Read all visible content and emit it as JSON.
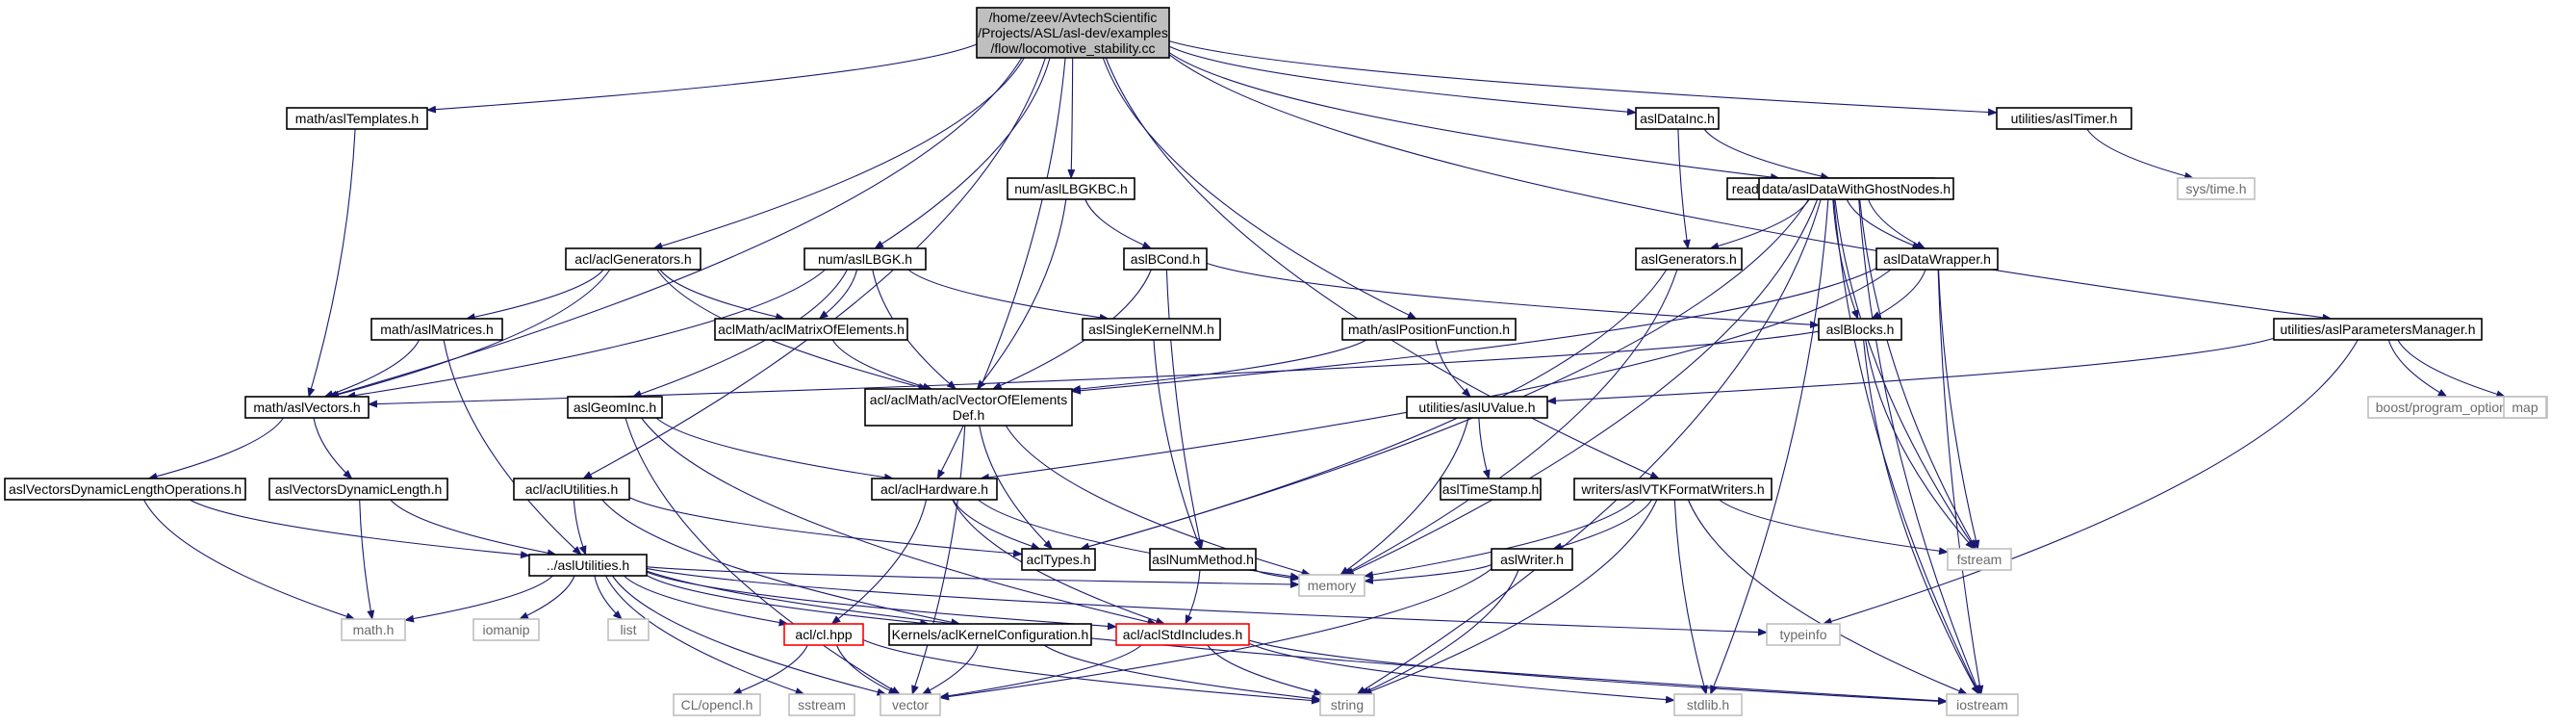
{
  "colors": {
    "edge": "#191970",
    "box_border": "#000000",
    "root_fill": "#bfbfbf",
    "missing_border": "#ff0000",
    "system_border": "#bfbfbf"
  },
  "nodes": {
    "root": {
      "kind": "root",
      "lines": [
        "/home/zeev/AvtechScientific",
        "/Projects/ASL/asl-dev/examples",
        "/flow/locomotive_stability.cc"
      ]
    },
    "math_aslTemplates": {
      "kind": "box",
      "lines": [
        "math/aslTemplates.h"
      ]
    },
    "utilities_aslTimer": {
      "kind": "box",
      "lines": [
        "utilities/aslTimer.h"
      ]
    },
    "aslDataInc": {
      "kind": "box",
      "lines": [
        "aslDataInc.h"
      ]
    },
    "sys_time": {
      "kind": "system",
      "lines": [
        "sys/time.h"
      ]
    },
    "num_aslLBGKBC": {
      "kind": "box",
      "lines": [
        "num/aslLBGKBC.h"
      ]
    },
    "readers_aslVTKFormatReaders": {
      "kind": "box",
      "lines": [
        "readers/aslVTKFormatReaders.h"
      ]
    },
    "data_aslDataWithGhostNodes": {
      "kind": "box",
      "lines": [
        "data/aslDataWithGhostNodes.h"
      ]
    },
    "acl_aclGenerators": {
      "kind": "box",
      "lines": [
        "acl/aclGenerators.h"
      ]
    },
    "num_aslLBGK": {
      "kind": "box",
      "lines": [
        "num/aslLBGK.h"
      ]
    },
    "aslBCond": {
      "kind": "box",
      "lines": [
        "aslBCond.h"
      ]
    },
    "aslGenerators": {
      "kind": "box",
      "lines": [
        "aslGenerators.h"
      ]
    },
    "aslDataWrapper": {
      "kind": "box",
      "lines": [
        "aslDataWrapper.h"
      ]
    },
    "math_aslMatrices": {
      "kind": "box",
      "lines": [
        "math/aslMatrices.h"
      ]
    },
    "aclMath_aclMatrixOfElements": {
      "kind": "box",
      "lines": [
        "aclMath/aclMatrixOfElements.h"
      ]
    },
    "aslSingleKernelNM": {
      "kind": "box",
      "lines": [
        "aslSingleKernelNM.h"
      ]
    },
    "math_aslPositionFunction": {
      "kind": "box",
      "lines": [
        "math/aslPositionFunction.h"
      ]
    },
    "aslBlocks": {
      "kind": "box",
      "lines": [
        "aslBlocks.h"
      ]
    },
    "utilities_aslParametersManager": {
      "kind": "box",
      "lines": [
        "utilities/aslParametersManager.h"
      ]
    },
    "math_aslVectors": {
      "kind": "box",
      "lines": [
        "math/aslVectors.h"
      ]
    },
    "aclVectorOfElementsDef": {
      "kind": "box",
      "lines": [
        "acl/aclMath/aclVectorOfElements",
        "Def.h"
      ]
    },
    "utilities_aslUValue": {
      "kind": "box",
      "lines": [
        "utilities/aslUValue.h"
      ]
    },
    "boost_program_options": {
      "kind": "system",
      "lines": [
        "boost/program_options.hpp"
      ]
    },
    "map": {
      "kind": "system",
      "lines": [
        "map"
      ]
    },
    "aslGeomInc": {
      "kind": "box",
      "lines": [
        "aslGeomInc.h"
      ]
    },
    "aslVectorsDynamicLengthOperations": {
      "kind": "box",
      "lines": [
        "aslVectorsDynamicLengthOperations.h"
      ]
    },
    "aslVectorsDynamicLength": {
      "kind": "box",
      "lines": [
        "aslVectorsDynamicLength.h"
      ]
    },
    "acl_aclUtilities": {
      "kind": "box",
      "lines": [
        "acl/aclUtilities.h"
      ]
    },
    "acl_aclHardware": {
      "kind": "box",
      "lines": [
        "acl/aclHardware.h"
      ]
    },
    "aslTimeStamp": {
      "kind": "box",
      "lines": [
        "aslTimeStamp.h"
      ]
    },
    "writers_aslVTKFormatWriters": {
      "kind": "box",
      "lines": [
        "writers/aslVTKFormatWriters.h"
      ]
    },
    "aclTypes": {
      "kind": "box",
      "lines": [
        "aclTypes.h"
      ]
    },
    "aslNumMethod": {
      "kind": "box",
      "lines": [
        "aslNumMethod.h"
      ]
    },
    "fstream": {
      "kind": "system",
      "lines": [
        "fstream"
      ]
    },
    "aslUtilities": {
      "kind": "box",
      "lines": [
        "../aslUtilities.h"
      ]
    },
    "aslWriter": {
      "kind": "box",
      "lines": [
        "aslWriter.h"
      ]
    },
    "math_h": {
      "kind": "system",
      "lines": [
        "math.h"
      ]
    },
    "iomanip": {
      "kind": "system",
      "lines": [
        "iomanip"
      ]
    },
    "list": {
      "kind": "system",
      "lines": [
        "list"
      ]
    },
    "acl_cl_hpp": {
      "kind": "missing",
      "lines": [
        "acl/cl.hpp"
      ]
    },
    "Kernels_aclKernelConfiguration": {
      "kind": "box",
      "lines": [
        "Kernels/aclKernelConfiguration.h"
      ]
    },
    "acl_aclStdIncludes": {
      "kind": "missing",
      "lines": [
        "acl/aclStdIncludes.h"
      ]
    },
    "memory": {
      "kind": "system",
      "lines": [
        "memory"
      ]
    },
    "typeinfo": {
      "kind": "system",
      "lines": [
        "typeinfo"
      ]
    },
    "CL_opencl": {
      "kind": "system",
      "lines": [
        "CL/opencl.h"
      ]
    },
    "sstream": {
      "kind": "system",
      "lines": [
        "sstream"
      ]
    },
    "vector": {
      "kind": "system",
      "lines": [
        "vector"
      ]
    },
    "string": {
      "kind": "system",
      "lines": [
        "string"
      ]
    },
    "stdlib_h": {
      "kind": "system",
      "lines": [
        "stdlib.h"
      ]
    },
    "iostream": {
      "kind": "system",
      "lines": [
        "iostream"
      ]
    }
  },
  "edges": [
    [
      "root",
      "math_aslTemplates"
    ],
    [
      "root",
      "math_aslVectors"
    ],
    [
      "root",
      "acl_aclUtilities"
    ],
    [
      "root",
      "acl_aclGenerators"
    ],
    [
      "root",
      "acl_aclHardware"
    ],
    [
      "root",
      "num_aslLBGK"
    ],
    [
      "root",
      "num_aslLBGKBC"
    ],
    [
      "root",
      "math_aslPositionFunction"
    ],
    [
      "root",
      "writers_aslVTKFormatWriters"
    ],
    [
      "root",
      "aslDataInc"
    ],
    [
      "root",
      "readers_aslVTKFormatReaders"
    ],
    [
      "root",
      "utilities_aslTimer"
    ],
    [
      "root",
      "utilities_aslParametersManager"
    ],
    [
      "math_aslTemplates",
      "math_aslVectors"
    ],
    [
      "utilities_aslTimer",
      "sys_time"
    ],
    [
      "aslDataInc",
      "data_aslDataWithGhostNodes"
    ],
    [
      "aslDataInc",
      "aslGenerators"
    ],
    [
      "data_aslDataWithGhostNodes",
      "aslDataWrapper"
    ],
    [
      "data_aslDataWithGhostNodes",
      "fstream"
    ],
    [
      "data_aslDataWithGhostNodes",
      "iostream"
    ],
    [
      "num_aslLBGKBC",
      "aslBCond"
    ],
    [
      "num_aslLBGKBC",
      "aclVectorOfElementsDef"
    ],
    [
      "acl_aclGenerators",
      "math_aslVectors"
    ],
    [
      "acl_aclGenerators",
      "math_aslMatrices"
    ],
    [
      "acl_aclGenerators",
      "aclMath_aclMatrixOfElements"
    ],
    [
      "acl_aclGenerators",
      "aclVectorOfElementsDef"
    ],
    [
      "num_aslLBGK",
      "math_aslVectors"
    ],
    [
      "num_aslLBGK",
      "aclMath_aclMatrixOfElements"
    ],
    [
      "num_aslLBGK",
      "aslSingleKernelNM"
    ],
    [
      "num_aslLBGK",
      "aclVectorOfElementsDef"
    ],
    [
      "num_aslLBGK",
      "aslGeomInc"
    ],
    [
      "aslBCond",
      "aclVectorOfElementsDef"
    ],
    [
      "aslBCond",
      "aslBlocks"
    ],
    [
      "aslBCond",
      "aslNumMethod"
    ],
    [
      "readers_aslVTKFormatReaders",
      "aslGenerators"
    ],
    [
      "readers_aslVTKFormatReaders",
      "aslDataWrapper"
    ],
    [
      "readers_aslVTKFormatReaders",
      "aslBlocks"
    ],
    [
      "readers_aslVTKFormatReaders",
      "fstream"
    ],
    [
      "readers_aslVTKFormatReaders",
      "iostream"
    ],
    [
      "readers_aslVTKFormatReaders",
      "string"
    ],
    [
      "readers_aslVTKFormatReaders",
      "stdlib_h"
    ],
    [
      "readers_aslVTKFormatReaders",
      "memory"
    ],
    [
      "readers_aslVTKFormatReaders",
      "aclTypes"
    ],
    [
      "aslGenerators",
      "aclTypes"
    ],
    [
      "aslGenerators",
      "memory"
    ],
    [
      "aslDataWrapper",
      "aclVectorOfElementsDef"
    ],
    [
      "aslDataWrapper",
      "aslBlocks"
    ],
    [
      "aslDataWrapper",
      "fstream"
    ],
    [
      "aslDataWrapper",
      "iostream"
    ],
    [
      "aslDataWrapper",
      "acl_aclHardware"
    ],
    [
      "math_aslMatrices",
      "math_aslVectors"
    ],
    [
      "math_aslMatrices",
      "aslUtilities"
    ],
    [
      "aclMath_aclMatrixOfElements",
      "aclVectorOfElementsDef"
    ],
    [
      "aslSingleKernelNM",
      "aslNumMethod"
    ],
    [
      "math_aslPositionFunction",
      "aclVectorOfElementsDef"
    ],
    [
      "math_aslPositionFunction",
      "utilities_aslUValue"
    ],
    [
      "aslBlocks",
      "math_aslVectors"
    ],
    [
      "aslBlocks",
      "fstream"
    ],
    [
      "aslBlocks",
      "iostream"
    ],
    [
      "utilities_aslParametersManager",
      "utilities_aslUValue"
    ],
    [
      "utilities_aslParametersManager",
      "boost_program_options"
    ],
    [
      "utilities_aslParametersManager",
      "map"
    ],
    [
      "utilities_aslParametersManager",
      "typeinfo"
    ],
    [
      "math_aslVectors",
      "aslVectorsDynamicLengthOperations"
    ],
    [
      "math_aslVectors",
      "aslVectorsDynamicLength"
    ],
    [
      "aclVectorOfElementsDef",
      "aclTypes"
    ],
    [
      "aclVectorOfElementsDef",
      "memory"
    ],
    [
      "aclVectorOfElementsDef",
      "vector"
    ],
    [
      "utilities_aslUValue",
      "aslTimeStamp"
    ],
    [
      "utilities_aslUValue",
      "memory"
    ],
    [
      "aslGeomInc",
      "acl_aclHardware"
    ],
    [
      "aslGeomInc",
      "vector"
    ],
    [
      "aslGeomInc",
      "acl_aclStdIncludes"
    ],
    [
      "aslVectorsDynamicLengthOperations",
      "aslUtilities"
    ],
    [
      "aslVectorsDynamicLengthOperations",
      "math_h"
    ],
    [
      "aslVectorsDynamicLength",
      "aslUtilities"
    ],
    [
      "aslVectorsDynamicLength",
      "math_h"
    ],
    [
      "acl_aclUtilities",
      "aslUtilities"
    ],
    [
      "acl_aclUtilities",
      "aclTypes"
    ],
    [
      "acl_aclUtilities",
      "Kernels_aclKernelConfiguration"
    ],
    [
      "acl_aclHardware",
      "aclTypes"
    ],
    [
      "acl_aclHardware",
      "acl_cl_hpp"
    ],
    [
      "acl_aclHardware",
      "acl_aclStdIncludes"
    ],
    [
      "acl_aclHardware",
      "memory"
    ],
    [
      "writers_aslVTKFormatWriters",
      "aslWriter"
    ],
    [
      "writers_aslVTKFormatWriters",
      "fstream"
    ],
    [
      "writers_aslVTKFormatWriters",
      "iostream"
    ],
    [
      "writers_aslVTKFormatWriters",
      "stdlib_h"
    ],
    [
      "writers_aslVTKFormatWriters",
      "string"
    ],
    [
      "writers_aslVTKFormatWriters",
      "memory"
    ],
    [
      "aslNumMethod",
      "acl_aclStdIncludes"
    ],
    [
      "aslNumMethod",
      "memory"
    ],
    [
      "aslUtilities",
      "math_h"
    ],
    [
      "aslUtilities",
      "iomanip"
    ],
    [
      "aslUtilities",
      "list"
    ],
    [
      "aslUtilities",
      "acl_cl_hpp"
    ],
    [
      "aslUtilities",
      "Kernels_aclKernelConfiguration"
    ],
    [
      "aslUtilities",
      "acl_aclStdIncludes"
    ],
    [
      "aslUtilities",
      "memory"
    ],
    [
      "aslUtilities",
      "typeinfo"
    ],
    [
      "aslUtilities",
      "iostream"
    ],
    [
      "aslUtilities",
      "vector"
    ],
    [
      "aslUtilities",
      "sstream"
    ],
    [
      "aslWriter",
      "memory"
    ],
    [
      "aslWriter",
      "string"
    ],
    [
      "aslWriter",
      "vector"
    ],
    [
      "acl_cl_hpp",
      "CL_opencl"
    ],
    [
      "acl_cl_hpp",
      "vector"
    ],
    [
      "acl_cl_hpp",
      "string"
    ],
    [
      "Kernels_aclKernelConfiguration",
      "vector"
    ],
    [
      "Kernels_aclKernelConfiguration",
      "string"
    ],
    [
      "acl_aclStdIncludes",
      "vector"
    ],
    [
      "acl_aclStdIncludes",
      "string"
    ],
    [
      "acl_aclStdIncludes",
      "iostream"
    ],
    [
      "acl_aclStdIncludes",
      "stdlib_h"
    ]
  ]
}
